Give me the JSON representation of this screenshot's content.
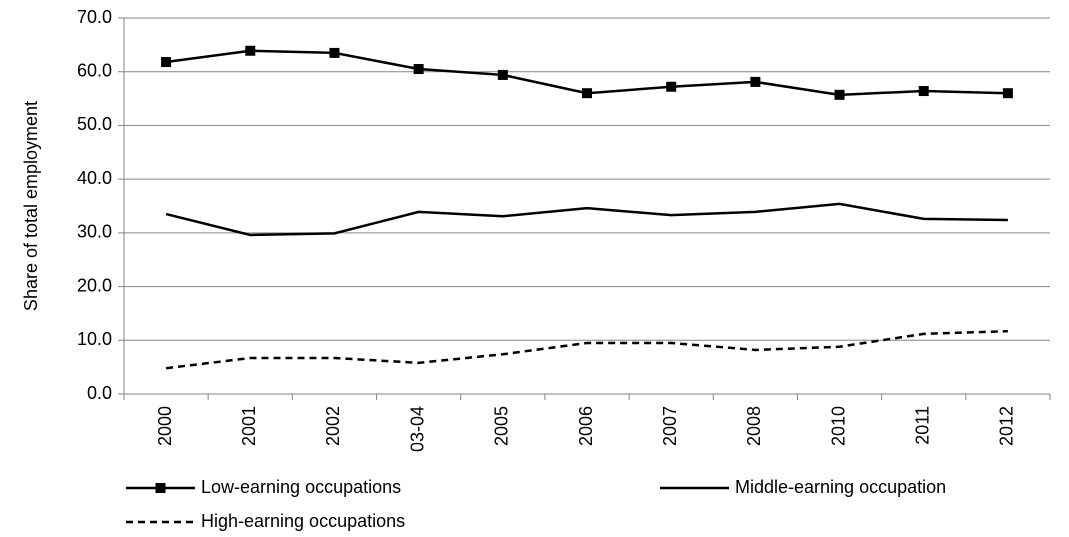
{
  "chart_data": {
    "type": "line",
    "y_label": "Share of total employment",
    "categories": [
      "2000",
      "2001",
      "2002",
      "03-04",
      "2005",
      "2006",
      "2007",
      "2008",
      "2010",
      "2011",
      "2012"
    ],
    "series": [
      {
        "name": "Low-earning occupations",
        "color": "#000000",
        "style": "solid",
        "marker": "square",
        "values": [
          61.8,
          63.9,
          63.5,
          60.5,
          59.4,
          56.0,
          57.2,
          58.1,
          55.7,
          56.4,
          56.0
        ]
      },
      {
        "name": "Middle-earning occupation",
        "color": "#000000",
        "style": "solid",
        "values": [
          33.5,
          29.6,
          29.9,
          33.9,
          33.1,
          34.6,
          33.3,
          33.9,
          35.4,
          32.6,
          32.4
        ]
      },
      {
        "name": "High-earning occupations",
        "color": "#000000",
        "style": "dashed",
        "values": [
          4.8,
          6.7,
          6.7,
          5.8,
          7.4,
          9.5,
          9.5,
          8.2,
          8.8,
          11.2,
          11.7
        ]
      }
    ],
    "ylim": [
      0,
      70
    ],
    "yticks": [
      {
        "value": 0,
        "label": "0.0"
      },
      {
        "value": 10,
        "label": "10.0"
      },
      {
        "value": 20,
        "label": "20.0"
      },
      {
        "value": 30,
        "label": "30.0"
      },
      {
        "value": 40,
        "label": "40.0"
      },
      {
        "value": 50,
        "label": "50.0"
      },
      {
        "value": 60,
        "label": "60.0"
      },
      {
        "value": 70,
        "label": "70.0"
      }
    ],
    "grid": true,
    "legend": "bottom"
  }
}
